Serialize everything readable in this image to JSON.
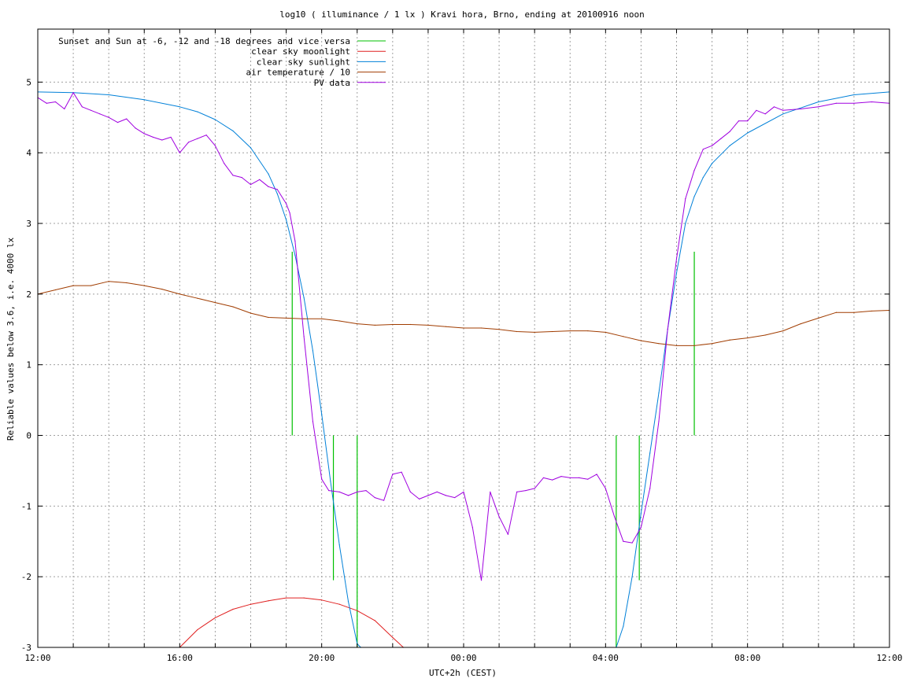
{
  "chart_data": {
    "type": "line",
    "title": "log10 ( illuminance / 1 lx ) Kravi hora, Brno, ending at 20100916 noon",
    "xlabel": "UTC+2h (CEST)",
    "ylabel": "Reliable values below 3.6, i.e. 4000 lx",
    "x_unit": "hours since 12:00 local time (CEST)",
    "xlim": [
      0,
      24
    ],
    "ylim": [
      -3,
      5.75
    ],
    "grid": true,
    "legend_position": "top-left",
    "x_ticks": [
      {
        "value": 0,
        "label": "12:00"
      },
      {
        "value": 4,
        "label": "16:00"
      },
      {
        "value": 8,
        "label": "20:00"
      },
      {
        "value": 12,
        "label": "00:00"
      },
      {
        "value": 16,
        "label": "04:00"
      },
      {
        "value": 20,
        "label": "08:00"
      },
      {
        "value": 24,
        "label": "12:00"
      }
    ],
    "x_minor_step": 1,
    "y_ticks": [
      {
        "value": -3,
        "label": "-3"
      },
      {
        "value": -2,
        "label": "-2"
      },
      {
        "value": -1,
        "label": "-1"
      },
      {
        "value": 0,
        "label": "0"
      },
      {
        "value": 1,
        "label": "1"
      },
      {
        "value": 2,
        "label": "2"
      },
      {
        "value": 3,
        "label": "3"
      },
      {
        "value": 4,
        "label": "4"
      },
      {
        "value": 5,
        "label": "5"
      }
    ],
    "series": [
      {
        "name": "Sunset and Sun at -6, -12 and -18 degrees and vice versa",
        "color": "#00c000",
        "style": "impulses",
        "x": [
          7.17,
          8.33,
          9.0,
          16.3,
          16.95,
          18.5
        ],
        "y": [
          2.6,
          -2.05,
          -3.0,
          -3.0,
          -2.05,
          2.6
        ]
      },
      {
        "name": "clear sky moonlight",
        "color": "#e02020",
        "x": [
          4.0,
          4.5,
          5.0,
          5.5,
          6.0,
          6.5,
          7.0,
          7.5,
          8.0,
          8.5,
          9.0,
          9.5,
          10.0,
          10.3
        ],
        "y": [
          -3.0,
          -2.75,
          -2.58,
          -2.46,
          -2.39,
          -2.34,
          -2.3,
          -2.3,
          -2.33,
          -2.39,
          -2.48,
          -2.62,
          -2.86,
          -3.0
        ]
      },
      {
        "name": "clear sky sunlight",
        "color": "#0080d8",
        "x": [
          0,
          1,
          2,
          3,
          4,
          4.5,
          5,
          5.5,
          6,
          6.5,
          6.75,
          7.0,
          7.25,
          7.5,
          7.75,
          8.0,
          8.25,
          8.5,
          8.75,
          9.0,
          9.1,
          16.3,
          16.5,
          16.75,
          17.0,
          17.25,
          17.5,
          17.75,
          18.0,
          18.25,
          18.5,
          18.75,
          19.0,
          19.5,
          20.0,
          21.0,
          22.0,
          23.0,
          24.0
        ],
        "y": [
          4.86,
          4.85,
          4.82,
          4.75,
          4.65,
          4.58,
          4.47,
          4.31,
          4.07,
          3.7,
          3.42,
          3.05,
          2.55,
          1.95,
          1.2,
          0.3,
          -0.65,
          -1.55,
          -2.35,
          -2.95,
          -3.0,
          -3.0,
          -2.7,
          -2.0,
          -1.1,
          -0.25,
          0.6,
          1.5,
          2.3,
          3.0,
          3.38,
          3.65,
          3.85,
          4.1,
          4.28,
          4.55,
          4.72,
          4.82,
          4.86
        ]
      },
      {
        "name": "air temperature / 10",
        "color": "#a03c00",
        "x": [
          0,
          0.5,
          1.0,
          1.5,
          2.0,
          2.5,
          3.0,
          3.5,
          4.0,
          4.5,
          5.0,
          5.5,
          6.0,
          6.5,
          7.0,
          7.5,
          8.0,
          8.5,
          9.0,
          9.5,
          10.0,
          10.5,
          11.0,
          11.5,
          12.0,
          12.5,
          13.0,
          13.5,
          14.0,
          14.5,
          15.0,
          15.5,
          16.0,
          16.5,
          17.0,
          17.5,
          18.0,
          18.5,
          19.0,
          19.5,
          20.0,
          20.5,
          21.0,
          21.5,
          22.0,
          22.5,
          23.0,
          23.5,
          24.0
        ],
        "y": [
          2.0,
          2.06,
          2.12,
          2.12,
          2.18,
          2.16,
          2.12,
          2.07,
          2.0,
          1.94,
          1.88,
          1.82,
          1.73,
          1.67,
          1.66,
          1.65,
          1.65,
          1.62,
          1.58,
          1.56,
          1.57,
          1.57,
          1.56,
          1.54,
          1.52,
          1.52,
          1.5,
          1.47,
          1.46,
          1.47,
          1.48,
          1.48,
          1.46,
          1.4,
          1.34,
          1.3,
          1.27,
          1.27,
          1.3,
          1.35,
          1.38,
          1.42,
          1.48,
          1.58,
          1.66,
          1.74,
          1.74,
          1.76,
          1.77
        ]
      },
      {
        "name": "PV data",
        "color": "#a000e0",
        "x": [
          0,
          0.25,
          0.5,
          0.75,
          1.0,
          1.25,
          1.5,
          1.75,
          2.0,
          2.25,
          2.5,
          2.75,
          3.0,
          3.25,
          3.5,
          3.75,
          4.0,
          4.25,
          4.5,
          4.75,
          5.0,
          5.25,
          5.5,
          5.75,
          6.0,
          6.25,
          6.5,
          6.75,
          7.0,
          7.1,
          7.25,
          7.5,
          7.75,
          8.0,
          8.2,
          8.5,
          8.75,
          9.0,
          9.25,
          9.5,
          9.75,
          10.0,
          10.25,
          10.5,
          10.75,
          11.0,
          11.25,
          11.5,
          11.75,
          12.0,
          12.25,
          12.5,
          12.75,
          13.0,
          13.25,
          13.5,
          13.75,
          14.0,
          14.25,
          14.5,
          14.75,
          15.0,
          15.25,
          15.5,
          15.75,
          16.0,
          16.25,
          16.5,
          16.75,
          17.0,
          17.25,
          17.5,
          17.75,
          18.0,
          18.25,
          18.5,
          18.75,
          19.0,
          19.25,
          19.5,
          19.75,
          20.0,
          20.25,
          20.5,
          20.75,
          21.0,
          21.5,
          22.0,
          22.5,
          23.0,
          23.5,
          24.0
        ],
        "y": [
          4.78,
          4.7,
          4.72,
          4.62,
          4.85,
          4.65,
          4.6,
          4.55,
          4.5,
          4.43,
          4.48,
          4.35,
          4.27,
          4.22,
          4.18,
          4.22,
          4.0,
          4.15,
          4.2,
          4.25,
          4.1,
          3.85,
          3.68,
          3.65,
          3.55,
          3.62,
          3.52,
          3.48,
          3.28,
          3.15,
          2.75,
          1.4,
          0.2,
          -0.62,
          -0.78,
          -0.8,
          -0.85,
          -0.8,
          -0.78,
          -0.88,
          -0.92,
          -0.55,
          -0.52,
          -0.8,
          -0.9,
          -0.85,
          -0.8,
          -0.85,
          -0.88,
          -0.8,
          -1.3,
          -2.05,
          -0.8,
          -1.15,
          -1.4,
          -0.8,
          -0.78,
          -0.75,
          -0.6,
          -0.63,
          -0.58,
          -0.6,
          -0.6,
          -0.62,
          -0.55,
          -0.75,
          -1.15,
          -1.5,
          -1.52,
          -1.3,
          -0.75,
          0.2,
          1.5,
          2.5,
          3.35,
          3.75,
          4.05,
          4.1,
          4.2,
          4.3,
          4.45,
          4.45,
          4.6,
          4.55,
          4.65,
          4.6,
          4.62,
          4.65,
          4.7,
          4.7,
          4.72,
          4.7
        ]
      }
    ]
  }
}
